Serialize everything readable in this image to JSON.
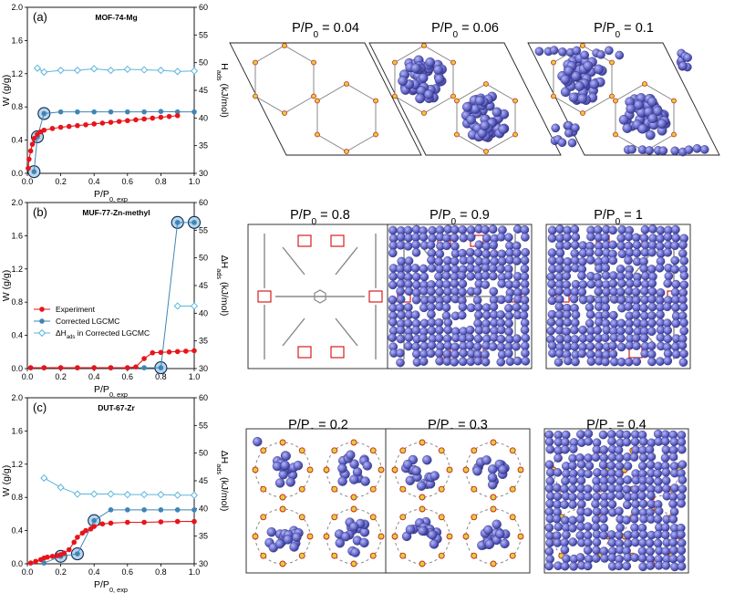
{
  "figure": {
    "colors": {
      "experiment": "#e8141a",
      "lgcmc": "#3f85b4",
      "dh": "#5bb6d9",
      "highlight": "#b9d6ec",
      "molecule": "#6f72d3",
      "frame_red": "#d61e1e",
      "frame_gray": "#888888",
      "frame_yellow": "#d8d23a"
    },
    "legend": {
      "experiment": "Experiment",
      "lgcmc": "Corrected LGCMC",
      "dh": "ΔH",
      "dh_sub": "ads",
      "dh_suffix": " in Corrected LGCMC"
    },
    "axis_text": {
      "y_left": "W (g/g)",
      "y_right_main": "ΔH",
      "y_right_main_plain": "H",
      "y_right_sub": "ads",
      "y_right_unit": " (kJ/mol)",
      "x_main": "P/P",
      "x_sub": "0, exp"
    },
    "snapshot_prefix": "P/P",
    "snapshot_sub": "0"
  },
  "chart_data": [
    {
      "type": "line",
      "panel": "(a)",
      "title": "MOF-74-Mg",
      "xlabel": "P/P0, exp",
      "ylabel_left": "W (g/g)",
      "ylabel_right": "Hads (kJ/mol)",
      "xlim": [
        0,
        1.0
      ],
      "ylim_left": [
        0,
        2.0
      ],
      "ylim_right": [
        30,
        60
      ],
      "x_ticks": [
        "0.0",
        "0.2",
        "0.4",
        "0.6",
        "0.8",
        "1.0"
      ],
      "y_left_ticks": [
        "0.0",
        "0.4",
        "0.8",
        "1.2",
        "1.6",
        "2.0"
      ],
      "y_right_ticks": [
        "30",
        "35",
        "40",
        "45",
        "50",
        "55",
        "60"
      ],
      "series": [
        {
          "name": "Experiment",
          "x": [
            0.005,
            0.01,
            0.02,
            0.03,
            0.04,
            0.06,
            0.08,
            0.1,
            0.15,
            0.2,
            0.25,
            0.3,
            0.35,
            0.4,
            0.45,
            0.5,
            0.55,
            0.6,
            0.65,
            0.7,
            0.75,
            0.8,
            0.85,
            0.9
          ],
          "y": [
            0.06,
            0.17,
            0.27,
            0.35,
            0.42,
            0.47,
            0.5,
            0.52,
            0.54,
            0.555,
            0.565,
            0.575,
            0.585,
            0.595,
            0.605,
            0.615,
            0.625,
            0.635,
            0.645,
            0.655,
            0.665,
            0.675,
            0.685,
            0.695
          ]
        },
        {
          "name": "Corrected LGCMC",
          "x": [
            0.04,
            0.06,
            0.1,
            0.2,
            0.3,
            0.4,
            0.5,
            0.6,
            0.7,
            0.8,
            0.9,
            1.0
          ],
          "y": [
            0.02,
            0.44,
            0.72,
            0.74,
            0.74,
            0.74,
            0.74,
            0.74,
            0.74,
            0.745,
            0.74,
            0.74
          ]
        },
        {
          "name": "ΔHads in Corrected LGCMC",
          "x": [
            0.06,
            0.1,
            0.2,
            0.3,
            0.4,
            0.5,
            0.6,
            0.7,
            0.8,
            0.9,
            1.0
          ],
          "y": [
            49,
            48.3,
            48.6,
            48.6,
            48.9,
            48.6,
            48.8,
            48.7,
            48.6,
            48.4,
            48.5
          ]
        }
      ],
      "highlighted_x": [
        0.04,
        0.06,
        0.1
      ]
    },
    {
      "type": "line",
      "panel": "(b)",
      "title": "MUF-77-Zn-methyl",
      "xlabel": "P/P0, exp",
      "ylabel_left": "W (g/g)",
      "ylabel_right": "ΔHads (kJ/mol)",
      "xlim": [
        0,
        1.0
      ],
      "ylim_left": [
        0,
        2.0
      ],
      "ylim_right": [
        30,
        60
      ],
      "x_ticks": [
        "0.0",
        "0.2",
        "0.4",
        "0.6",
        "0.8",
        "1.0"
      ],
      "y_left_ticks": [
        "0.0",
        "0.4",
        "0.8",
        "1.2",
        "1.6",
        "2.0"
      ],
      "y_right_ticks": [
        "30",
        "35",
        "40",
        "45",
        "50",
        "55",
        "60"
      ],
      "series": [
        {
          "name": "Experiment",
          "x": [
            0.02,
            0.1,
            0.2,
            0.3,
            0.4,
            0.5,
            0.6,
            0.65,
            0.7,
            0.75,
            0.8,
            0.85,
            0.9,
            0.95,
            1.0
          ],
          "y": [
            0.01,
            0.01,
            0.01,
            0.01,
            0.01,
            0.01,
            0.01,
            0.02,
            0.12,
            0.19,
            0.195,
            0.2,
            0.205,
            0.21,
            0.215
          ]
        },
        {
          "name": "Corrected LGCMC",
          "x": [
            0.02,
            0.1,
            0.2,
            0.3,
            0.4,
            0.5,
            0.6,
            0.7,
            0.8,
            0.9,
            1.0
          ],
          "y": [
            0.01,
            0.01,
            0.01,
            0.01,
            0.01,
            0.01,
            0.01,
            0.01,
            0.01,
            1.76,
            1.76
          ]
        },
        {
          "name": "ΔHads in Corrected LGCMC",
          "x": [
            0.9,
            1.0
          ],
          "y": [
            41.3,
            41.3
          ]
        }
      ],
      "highlighted_x": [
        0.8,
        0.9,
        1.0
      ],
      "legend": [
        "Experiment",
        "Corrected LGCMC",
        "ΔHads in Corrected LGCMC"
      ]
    },
    {
      "type": "line",
      "panel": "(c)",
      "title": "DUT-67-Zr",
      "xlabel": "P/P0, exp",
      "ylabel_left": "W (g/g)",
      "ylabel_right": "ΔHads (kJ/mol)",
      "xlim": [
        0,
        1.0
      ],
      "ylim_left": [
        0,
        2.0
      ],
      "ylim_right": [
        30,
        60
      ],
      "x_ticks": [
        "0.0",
        "0.2",
        "0.4",
        "0.6",
        "0.8",
        "1.0"
      ],
      "y_left_ticks": [
        "0.0",
        "0.4",
        "0.8",
        "1.2",
        "1.6",
        "2.0"
      ],
      "y_right_ticks": [
        "30",
        "35",
        "40",
        "45",
        "50",
        "55",
        "60"
      ],
      "series": [
        {
          "name": "Experiment",
          "x": [
            0.02,
            0.05,
            0.08,
            0.1,
            0.12,
            0.15,
            0.18,
            0.2,
            0.22,
            0.25,
            0.28,
            0.3,
            0.33,
            0.35,
            0.38,
            0.4,
            0.45,
            0.5,
            0.6,
            0.7,
            0.8,
            0.9,
            1.0
          ],
          "y": [
            0.01,
            0.03,
            0.05,
            0.07,
            0.08,
            0.09,
            0.1,
            0.11,
            0.13,
            0.17,
            0.26,
            0.32,
            0.37,
            0.4,
            0.42,
            0.45,
            0.48,
            0.49,
            0.5,
            0.5,
            0.505,
            0.51,
            0.51
          ]
        },
        {
          "name": "Corrected LGCMC",
          "x": [
            0.1,
            0.2,
            0.3,
            0.4,
            0.5,
            0.6,
            0.7,
            0.8,
            0.9,
            1.0
          ],
          "y": [
            0.01,
            0.09,
            0.12,
            0.52,
            0.65,
            0.65,
            0.65,
            0.65,
            0.65,
            0.65
          ]
        },
        {
          "name": "ΔHads in Corrected LGCMC",
          "x": [
            0.1,
            0.2,
            0.3,
            0.4,
            0.5,
            0.6,
            0.7,
            0.8,
            0.9,
            1.0
          ],
          "y": [
            45.5,
            43.8,
            42.6,
            42.6,
            42.6,
            42.5,
            42.5,
            42.5,
            42.4,
            42.4
          ]
        }
      ],
      "highlighted_x": [
        0.2,
        0.3,
        0.4
      ]
    }
  ],
  "snapshots": [
    {
      "values": [
        "0.04",
        "0.06",
        "0.1"
      ],
      "style": "hex",
      "fill": [
        0,
        1,
        2
      ]
    },
    {
      "values": [
        "0.8",
        "0.9",
        "1"
      ],
      "style": "linker",
      "fill": [
        0,
        3,
        3
      ]
    },
    {
      "values": [
        "0.2",
        "0.3",
        "0.4"
      ],
      "style": "cage",
      "fill": [
        1,
        1,
        3
      ]
    }
  ]
}
